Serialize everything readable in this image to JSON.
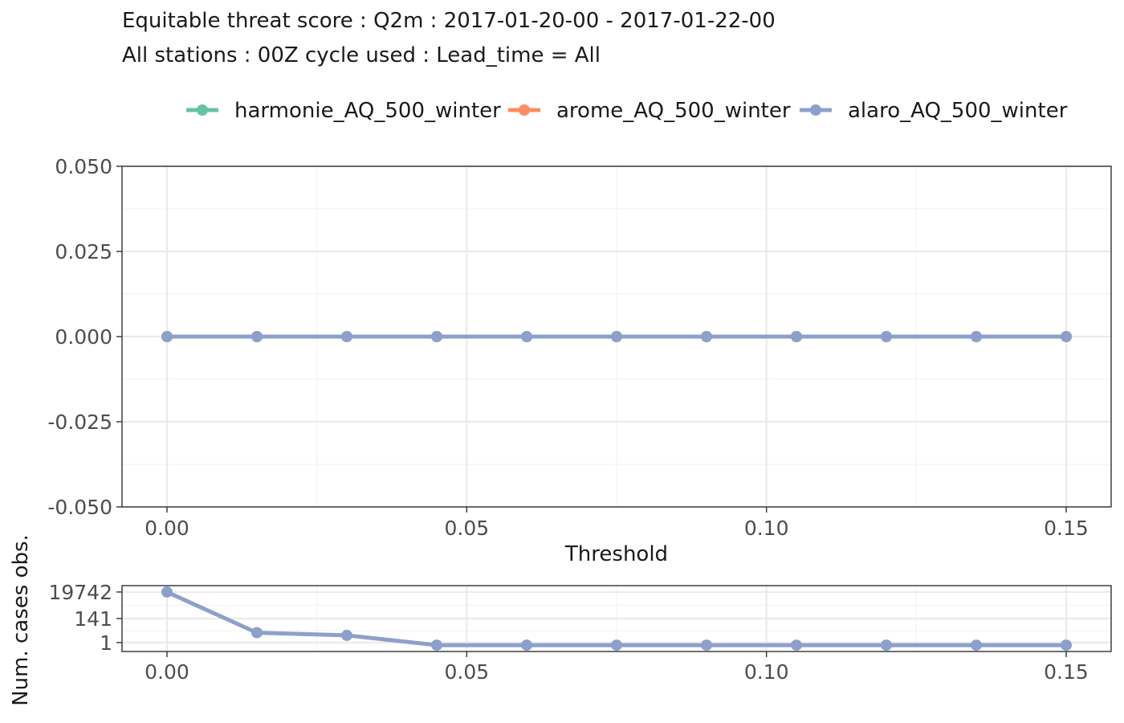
{
  "chart_data": [
    {
      "type": "line",
      "title": "Equitable threat score : Q2m : 2017-01-20-00 - 2017-01-22-00",
      "subtitle": "All stations : 00Z cycle used : Lead_time = All",
      "xlabel": "Threshold",
      "ylabel": "",
      "xlim": [
        -0.0075,
        0.1575
      ],
      "ylim": [
        -0.05,
        0.05
      ],
      "x_ticks": [
        "0.00",
        "0.05",
        "0.10",
        "0.15"
      ],
      "y_ticks": [
        "-0.050",
        "-0.025",
        "0.000",
        "0.025",
        "0.050"
      ],
      "grid": true,
      "legend_position": "top",
      "x": [
        0,
        0.015,
        0.03,
        0.045,
        0.06,
        0.075,
        0.09,
        0.105,
        0.12,
        0.135,
        0.15
      ],
      "series": [
        {
          "name": "harmonie_AQ_500_winter",
          "color": "#66c2a5",
          "values": [
            0,
            0,
            0,
            0,
            0,
            0,
            0,
            0,
            0,
            0,
            0
          ]
        },
        {
          "name": "arome_AQ_500_winter",
          "color": "#fc8d62",
          "values": [
            0,
            0,
            0,
            0,
            0,
            0,
            0,
            0,
            0,
            0,
            0
          ]
        },
        {
          "name": "alaro_AQ_500_winter",
          "color": "#8da0cb",
          "values": [
            0,
            0,
            0,
            0,
            0,
            0,
            0,
            0,
            0,
            0,
            0
          ]
        }
      ]
    },
    {
      "type": "line",
      "xlabel": "",
      "ylabel": "Num. cases obs.",
      "scale": "pseudo-log",
      "xlim": [
        -0.0075,
        0.1575
      ],
      "ylim": [
        0,
        19742
      ],
      "x_ticks": [
        "0.00",
        "0.05",
        "0.10",
        "0.15"
      ],
      "y_ticks": [
        "1",
        "141",
        "19742"
      ],
      "grid": true,
      "x": [
        0,
        0.015,
        0.03,
        0.045,
        0.06,
        0.075,
        0.09,
        0.105,
        0.12,
        0.135,
        0.15
      ],
      "series": [
        {
          "color": "#8da0cb",
          "values": [
            19742,
            10,
            6,
            0,
            0,
            0,
            0,
            0,
            0,
            0,
            0
          ]
        }
      ]
    }
  ]
}
